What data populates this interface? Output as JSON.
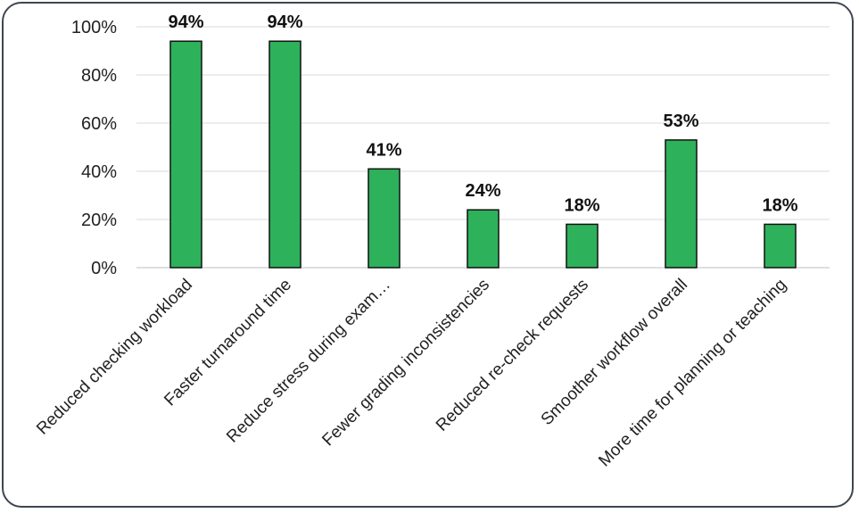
{
  "chart_data": {
    "type": "bar",
    "categories": [
      "Reduced checking workload",
      "Faster turnaround time",
      "Reduce stress during exam…",
      "Fewer grading inconsistencies",
      "Reduced re-check requests",
      "Smoother workflow overall",
      "More time for planning or teaching"
    ],
    "values": [
      94,
      94,
      41,
      24,
      18,
      53,
      18
    ],
    "data_labels": [
      "94%",
      "94%",
      "41%",
      "24%",
      "18%",
      "53%",
      "18%"
    ],
    "yticks": [
      "0%",
      "20%",
      "40%",
      "60%",
      "80%",
      "100%"
    ],
    "ylim": [
      0,
      100
    ],
    "grid": true,
    "legend": "none",
    "colors": {
      "bar": "#2eb15b",
      "bar_outline": "#111111",
      "grid": "#d9d9d9"
    }
  }
}
